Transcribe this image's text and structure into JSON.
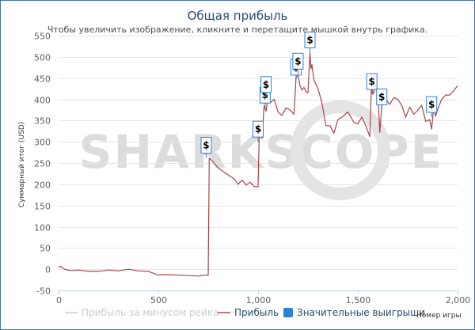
{
  "chart_data": {
    "type": "line",
    "title": "Общая прибыль",
    "subtitle": "Чтобы увеличить изображение, кликните и перетащите мышкой внутрь графика.",
    "xlabel": "Номер игры",
    "ylabel": "Суммарный итог (USD)",
    "xlim": [
      0,
      2000
    ],
    "ylim": [
      -50,
      550
    ],
    "x_ticks": [
      "0",
      "500",
      "1,000",
      "1,500",
      "2,000"
    ],
    "y_ticks": [
      "-50",
      "0",
      "50",
      "100",
      "150",
      "200",
      "250",
      "300",
      "350",
      "400",
      "450",
      "500",
      "550"
    ],
    "grid": "horizontal",
    "watermark": "SHARKSCOPE",
    "legend": {
      "position": "bottom",
      "items": [
        {
          "label": "Прибыль за минусом рейка",
          "color": "#cccccc",
          "symbol": "line",
          "hidden": true
        },
        {
          "label": "Прибыль",
          "color": "#a9444a",
          "symbol": "line"
        },
        {
          "label": "Значительные выигрыши",
          "color": "#2f7ed8",
          "symbol": "square"
        }
      ]
    },
    "series": [
      {
        "name": "Прибыль",
        "color": "#a9444a",
        "x": [
          0,
          10,
          30,
          60,
          100,
          150,
          200,
          250,
          300,
          350,
          400,
          450,
          500,
          520,
          550,
          600,
          650,
          700,
          730,
          750,
          755,
          770,
          800,
          850,
          880,
          900,
          920,
          940,
          960,
          980,
          1000,
          1005,
          1010,
          1020,
          1030,
          1040,
          1050,
          1060,
          1080,
          1100,
          1120,
          1140,
          1160,
          1180,
          1190,
          1200,
          1210,
          1220,
          1230,
          1240,
          1250,
          1260,
          1265,
          1270,
          1280,
          1300,
          1320,
          1340,
          1360,
          1380,
          1400,
          1420,
          1450,
          1480,
          1500,
          1520,
          1540,
          1560,
          1570,
          1575,
          1580,
          1590,
          1600,
          1610,
          1620,
          1630,
          1640,
          1660,
          1680,
          1700,
          1720,
          1740,
          1760,
          1780,
          1800,
          1820,
          1840,
          1860,
          1870,
          1880,
          1890,
          1900,
          1920,
          1940,
          1960,
          1980,
          2000
        ],
        "y": [
          5,
          7,
          0,
          -3,
          -2,
          -5,
          -5,
          -2,
          -4,
          0,
          -4,
          -5,
          -14,
          -13,
          -13,
          -14,
          -15,
          -16,
          -14,
          -14,
          262,
          255,
          238,
          222,
          213,
          200,
          210,
          198,
          205,
          195,
          194,
          305,
          322,
          308,
          385,
          372,
          410,
          392,
          400,
          370,
          362,
          380,
          375,
          365,
          450,
          458,
          432,
          422,
          428,
          418,
          415,
          510,
          472,
          482,
          445,
          426,
          392,
          338,
          338,
          320,
          352,
          358,
          370,
          346,
          342,
          358,
          338,
          312,
          453,
          412,
          416,
          432,
          420,
          322,
          385,
          392,
          400,
          388,
          404,
          400,
          386,
          358,
          382,
          365,
          374,
          386,
          348,
          352,
          330,
          380,
          360,
          376,
          400,
          410,
          410,
          420,
          432
        ]
      }
    ],
    "flags": [
      {
        "x": 740,
        "y": 262,
        "label": "$"
      },
      {
        "x": 1000,
        "y": 300,
        "label": "$"
      },
      {
        "x": 1035,
        "y": 380,
        "label": "$"
      },
      {
        "x": 1040,
        "y": 405,
        "label": "$"
      },
      {
        "x": 1190,
        "y": 446,
        "label": "$"
      },
      {
        "x": 1200,
        "y": 460,
        "label": "$"
      },
      {
        "x": 1260,
        "y": 510,
        "label": "$"
      },
      {
        "x": 1570,
        "y": 412,
        "label": "$"
      },
      {
        "x": 1620,
        "y": 376,
        "label": "$"
      },
      {
        "x": 1870,
        "y": 358,
        "label": "$"
      }
    ]
  }
}
